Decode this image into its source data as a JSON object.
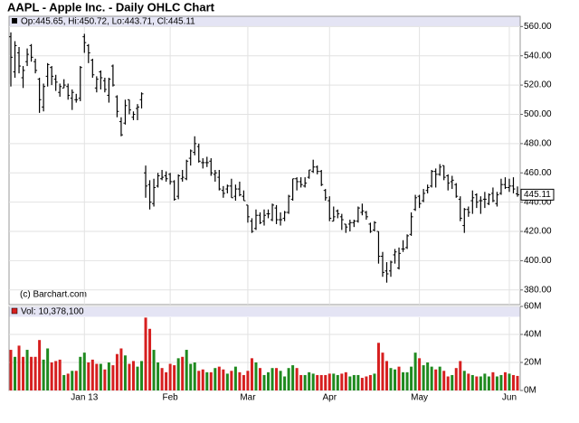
{
  "chart_data": {
    "type": "ohlc",
    "title": "AAPL - Apple Inc. - Daily OHLC Chart",
    "readout": "Op:445.65, Hi:450.72, Lo:443.71, Cl:445.11",
    "credit": "(c) Barchart.com",
    "color": "#000000",
    "grid": true,
    "categories": [
      null,
      null,
      null,
      null,
      null,
      null,
      null,
      null,
      null,
      null,
      null,
      null,
      null,
      null,
      null,
      null,
      null,
      null,
      "Jan 13",
      null,
      null,
      null,
      null,
      null,
      null,
      null,
      null,
      null,
      null,
      null,
      null,
      null,
      null,
      null,
      null,
      null,
      null,
      null,
      null,
      "Feb",
      null,
      null,
      null,
      null,
      null,
      null,
      null,
      null,
      null,
      null,
      null,
      null,
      null,
      null,
      null,
      null,
      null,
      null,
      "Mar",
      null,
      null,
      null,
      null,
      null,
      null,
      null,
      null,
      null,
      null,
      null,
      null,
      null,
      null,
      null,
      null,
      null,
      null,
      null,
      "Apr",
      null,
      null,
      null,
      null,
      null,
      null,
      null,
      null,
      null,
      null,
      null,
      null,
      null,
      null,
      null,
      null,
      null,
      null,
      null,
      null,
      null,
      "May",
      null,
      null,
      null,
      null,
      null,
      null,
      null,
      null,
      null,
      null,
      null,
      null,
      null,
      null,
      null,
      null,
      null,
      null,
      null,
      null,
      null,
      "Jun",
      null,
      null
    ],
    "open": [
      553,
      529,
      542,
      525,
      536,
      547,
      536,
      524,
      505,
      526,
      532,
      524,
      515,
      518,
      519,
      511,
      510,
      511,
      553,
      547,
      537,
      518,
      529,
      523,
      513,
      533,
      512,
      495,
      494,
      510,
      498,
      504,
      510,
      460,
      452,
      439,
      451,
      456,
      458,
      459,
      454,
      444,
      456,
      456,
      470,
      474,
      478,
      467,
      467,
      468,
      459,
      457,
      448,
      449,
      451,
      444,
      449,
      444,
      438,
      427,
      422,
      431,
      427,
      432,
      428,
      436,
      428,
      429,
      433,
      442,
      456,
      454,
      451,
      457,
      461,
      464,
      461,
      448,
      441,
      427,
      434,
      430,
      425,
      425,
      426,
      427,
      433,
      433,
      425,
      421,
      420,
      403,
      393,
      393,
      404,
      395,
      408,
      409,
      418,
      435,
      444,
      441,
      448,
      451,
      461,
      459,
      465,
      458,
      454,
      452,
      442,
      424,
      435,
      441,
      445,
      441,
      442,
      439,
      446,
      439,
      446,
      452,
      450,
      451,
      445.65
    ],
    "high": [
      556,
      550,
      546,
      533,
      545,
      548,
      538,
      525,
      521,
      535,
      533,
      527,
      521,
      524,
      521,
      517,
      514,
      533,
      555,
      548,
      538,
      526,
      530,
      525,
      525,
      534,
      513,
      498,
      510,
      510,
      502,
      507,
      515,
      465,
      455,
      456,
      460,
      462,
      461,
      460,
      455,
      459,
      462,
      469,
      476,
      485,
      480,
      470,
      471,
      470,
      462,
      462,
      451,
      452,
      456,
      452,
      454,
      448,
      438,
      429,
      435,
      433,
      435,
      435,
      439,
      438,
      433,
      434,
      445,
      456,
      457,
      457,
      457,
      462,
      469,
      465,
      462,
      449,
      444,
      437,
      435,
      432,
      425,
      428,
      428,
      437,
      439,
      434,
      426,
      427,
      420,
      406,
      399,
      400,
      408,
      409,
      414,
      418,
      433,
      445,
      445,
      449,
      452,
      462,
      463,
      466,
      465,
      459,
      458,
      453,
      444,
      436,
      437,
      448,
      446,
      444,
      447,
      446,
      450,
      447,
      456,
      457,
      456,
      457,
      450.72
    ],
    "low": [
      519,
      525,
      528,
      518,
      533,
      536,
      528,
      501,
      502,
      519,
      520,
      516,
      512,
      518,
      510,
      503,
      508,
      509,
      542,
      535,
      525,
      515,
      517,
      515,
      508,
      519,
      498,
      485,
      493,
      500,
      496,
      496,
      504,
      443,
      435,
      437,
      450,
      455,
      454,
      452,
      441,
      442,
      454,
      455,
      465,
      472,
      467,
      463,
      464,
      458,
      454,
      448,
      443,
      446,
      443,
      441,
      444,
      441,
      426,
      419,
      421,
      425,
      424,
      429,
      427,
      425,
      424,
      427,
      432,
      441,
      448,
      450,
      450,
      456,
      460,
      459,
      451,
      441,
      427,
      427,
      429,
      421,
      419,
      420,
      423,
      426,
      431,
      428,
      419,
      420,
      398,
      389,
      385,
      389,
      398,
      394,
      406,
      408,
      417,
      434,
      436,
      440,
      446,
      450,
      450,
      458,
      455,
      448,
      449,
      443,
      427,
      419,
      430,
      432,
      436,
      432,
      436,
      438,
      440,
      437,
      445,
      449,
      447,
      446,
      443.71
    ],
    "close": [
      539,
      547,
      533,
      530,
      541,
      539,
      530,
      510,
      519,
      534,
      526,
      522,
      519,
      520,
      513,
      515,
      510,
      532,
      549,
      542,
      527,
      524,
      525,
      517,
      524,
      520,
      502,
      486,
      506,
      503,
      500,
      505,
      514,
      451,
      440,
      450,
      458,
      457,
      456,
      454,
      442,
      458,
      457,
      468,
      475,
      480,
      468,
      467,
      467,
      460,
      460,
      449,
      446,
      451,
      443,
      449,
      445,
      441,
      430,
      420,
      431,
      426,
      431,
      432,
      438,
      428,
      428,
      433,
      444,
      456,
      454,
      452,
      453,
      462,
      464,
      461,
      452,
      443,
      429,
      430,
      432,
      428,
      423,
      426,
      427,
      436,
      434,
      430,
      420,
      426,
      403,
      392,
      391,
      399,
      406,
      405,
      408,
      417,
      430,
      443,
      439,
      446,
      450,
      461,
      459,
      464,
      457,
      453,
      455,
      444,
      429,
      435,
      433,
      443,
      440,
      441,
      442,
      445,
      441,
      445,
      452,
      450,
      451,
      449,
      445.11
    ],
    "ylim": [
      370,
      567
    ],
    "yticks": [
      {
        "value": 380,
        "label": "380.00"
      },
      {
        "value": 400,
        "label": "400.00"
      },
      {
        "value": 420,
        "label": "420.00"
      },
      {
        "value": 440,
        "label": "440.00"
      },
      {
        "value": 460,
        "label": "460.00"
      },
      {
        "value": 480,
        "label": "480.00"
      },
      {
        "value": 500,
        "label": "500.00"
      },
      {
        "value": 520,
        "label": "520.00"
      },
      {
        "value": 540,
        "label": "540.00"
      },
      {
        "value": 560,
        "label": "560.00"
      }
    ],
    "volume": {
      "readout": "Vol: 10,378,100",
      "up_color": "#1f8a1f",
      "down_color": "#d61f1f",
      "values": [
        29000000,
        24000000,
        32000000,
        24000000,
        29000000,
        24000000,
        24000000,
        36000000,
        22000000,
        30000000,
        20000000,
        21000000,
        22000000,
        11000000,
        12000000,
        14000000,
        14000000,
        24000000,
        27000000,
        20000000,
        22000000,
        19000000,
        19000000,
        15000000,
        20000000,
        18000000,
        26000000,
        30000000,
        25000000,
        19000000,
        21000000,
        17000000,
        21000000,
        52000000,
        44000000,
        29000000,
        20000000,
        16000000,
        13000000,
        19000000,
        18000000,
        23000000,
        24000000,
        29000000,
        19000000,
        20000000,
        14000000,
        15000000,
        13000000,
        13000000,
        16000000,
        17000000,
        15000000,
        12000000,
        14000000,
        17000000,
        13000000,
        11000000,
        14000000,
        23000000,
        20000000,
        16000000,
        11000000,
        13000000,
        16000000,
        16000000,
        14000000,
        10000000,
        16000000,
        18000000,
        16000000,
        11000000,
        11000000,
        13000000,
        12000000,
        11000000,
        11000000,
        11000000,
        12000000,
        12000000,
        11000000,
        12000000,
        13000000,
        10000000,
        11000000,
        11000000,
        9000000,
        10000000,
        11000000,
        12000000,
        34000000,
        27000000,
        21000000,
        16000000,
        15000000,
        17000000,
        13000000,
        13000000,
        17000000,
        27000000,
        23000000,
        18000000,
        20000000,
        17000000,
        15000000,
        17000000,
        14000000,
        10000000,
        11000000,
        16000000,
        21000000,
        14000000,
        12000000,
        11000000,
        10000000,
        10000000,
        12000000,
        10000000,
        13000000,
        10000000,
        11000000,
        13000000,
        12000000,
        11000000,
        10378100
      ],
      "ylim": [
        0,
        60000000
      ],
      "yticks": [
        {
          "value": 0,
          "label": "0M"
        },
        {
          "value": 20000000,
          "label": "20M"
        },
        {
          "value": 40000000,
          "label": "40M"
        },
        {
          "value": 60000000,
          "label": "60M"
        }
      ]
    }
  }
}
